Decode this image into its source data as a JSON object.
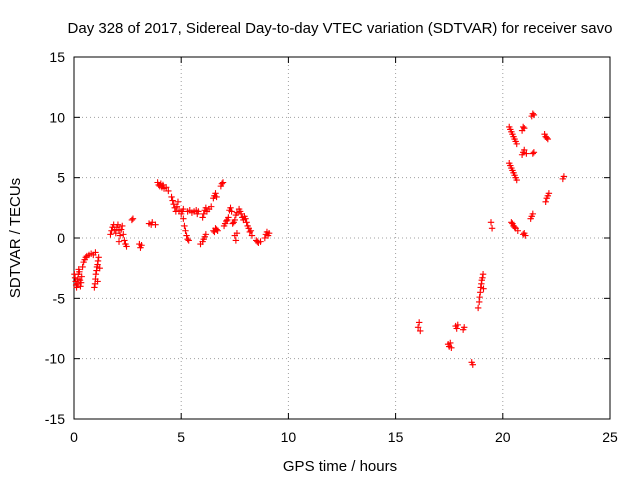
{
  "chart_data": {
    "type": "scatter",
    "title": "Day 328 of 2017, Sidereal Day-to-day VTEC variation (SDTVAR) for receiver savo",
    "xlabel": "GPS time / hours",
    "ylabel": "SDTVAR / TECUs",
    "xlim": [
      0,
      25
    ],
    "ylim": [
      -15,
      15
    ],
    "xticks": [
      0,
      5,
      10,
      15,
      20,
      25
    ],
    "yticks": [
      -15,
      -10,
      -5,
      0,
      5,
      10,
      15
    ],
    "grid": true,
    "marker": "plus",
    "marker_color": "#ff0000",
    "series": [
      {
        "name": "SDTVAR",
        "points": [
          [
            0.02,
            -3.0
          ],
          [
            0.05,
            -3.3
          ],
          [
            0.08,
            -3.6
          ],
          [
            0.1,
            -3.9
          ],
          [
            0.12,
            -4.1
          ],
          [
            0.15,
            -3.8
          ],
          [
            0.18,
            -3.4
          ],
          [
            0.2,
            -3.0
          ],
          [
            0.22,
            -2.6
          ],
          [
            0.25,
            -2.8
          ],
          [
            0.28,
            -3.5
          ],
          [
            0.3,
            -4.0
          ],
          [
            0.33,
            -3.7
          ],
          [
            0.36,
            -3.2
          ],
          [
            0.4,
            -2.4
          ],
          [
            0.45,
            -2.0
          ],
          [
            0.5,
            -1.8
          ],
          [
            0.55,
            -1.6
          ],
          [
            0.6,
            -1.5
          ],
          [
            0.7,
            -1.4
          ],
          [
            0.8,
            -1.3
          ],
          [
            0.9,
            -1.4
          ],
          [
            0.95,
            -4.1
          ],
          [
            0.98,
            -3.8
          ],
          [
            1.0,
            -3.4
          ],
          [
            1.02,
            -3.0
          ],
          [
            1.05,
            -2.7
          ],
          [
            1.07,
            -2.4
          ],
          [
            1.1,
            -2.2
          ],
          [
            1.12,
            -1.9
          ],
          [
            1.15,
            -1.6
          ],
          [
            1.0,
            -1.2
          ],
          [
            1.2,
            -2.5
          ],
          [
            1.1,
            -3.6
          ],
          [
            1.7,
            0.3
          ],
          [
            1.75,
            0.6
          ],
          [
            1.8,
            0.9
          ],
          [
            1.85,
            1.1
          ],
          [
            1.9,
            0.7
          ],
          [
            1.95,
            0.4
          ],
          [
            2.0,
            0.9
          ],
          [
            2.05,
            1.1
          ],
          [
            2.1,
            0.6
          ],
          [
            2.15,
            0.2
          ],
          [
            2.2,
            0.7
          ],
          [
            2.25,
            1.0
          ],
          [
            2.3,
            0.3
          ],
          [
            2.35,
            -0.2
          ],
          [
            2.4,
            -0.5
          ],
          [
            2.45,
            -0.7
          ],
          [
            2.1,
            -0.3
          ],
          [
            2.7,
            1.5
          ],
          [
            2.75,
            1.6
          ],
          [
            3.05,
            -0.5
          ],
          [
            3.1,
            -0.8
          ],
          [
            3.15,
            -0.6
          ],
          [
            3.5,
            1.2
          ],
          [
            3.6,
            1.1
          ],
          [
            3.65,
            1.3
          ],
          [
            3.8,
            1.1
          ],
          [
            3.9,
            4.6
          ],
          [
            3.95,
            4.4
          ],
          [
            4.0,
            4.3
          ],
          [
            4.05,
            4.5
          ],
          [
            4.1,
            4.2
          ],
          [
            4.15,
            4.4
          ],
          [
            4.2,
            4.1
          ],
          [
            4.3,
            4.2
          ],
          [
            4.4,
            3.9
          ],
          [
            4.55,
            3.4
          ],
          [
            4.6,
            3.1
          ],
          [
            4.65,
            2.8
          ],
          [
            4.7,
            2.5
          ],
          [
            4.75,
            2.2
          ],
          [
            4.8,
            2.6
          ],
          [
            4.85,
            3.0
          ],
          [
            4.9,
            2.3
          ],
          [
            5.0,
            2.0
          ],
          [
            5.05,
            2.2
          ],
          [
            5.1,
            1.6
          ],
          [
            5.15,
            1.0
          ],
          [
            5.2,
            0.6
          ],
          [
            5.25,
            0.2
          ],
          [
            5.3,
            -0.1
          ],
          [
            5.35,
            -0.2
          ],
          [
            5.1,
            2.4
          ],
          [
            5.3,
            2.2
          ],
          [
            5.4,
            2.3
          ],
          [
            5.5,
            2.1
          ],
          [
            5.6,
            2.2
          ],
          [
            5.7,
            2.3
          ],
          [
            5.75,
            2.0
          ],
          [
            5.8,
            2.2
          ],
          [
            5.9,
            -0.5
          ],
          [
            6.0,
            -0.3
          ],
          [
            6.05,
            -0.1
          ],
          [
            6.1,
            0.1
          ],
          [
            6.15,
            0.3
          ],
          [
            6.0,
            1.7
          ],
          [
            6.05,
            2.0
          ],
          [
            6.1,
            2.3
          ],
          [
            6.15,
            2.5
          ],
          [
            6.2,
            2.2
          ],
          [
            6.3,
            2.4
          ],
          [
            6.4,
            2.6
          ],
          [
            6.5,
            0.6
          ],
          [
            6.55,
            0.5
          ],
          [
            6.6,
            0.8
          ],
          [
            6.65,
            0.7
          ],
          [
            6.7,
            0.6
          ],
          [
            6.5,
            3.3
          ],
          [
            6.55,
            3.5
          ],
          [
            6.6,
            3.7
          ],
          [
            6.65,
            3.4
          ],
          [
            6.85,
            4.3
          ],
          [
            6.9,
            4.5
          ],
          [
            6.95,
            4.6
          ],
          [
            7.0,
            1.0
          ],
          [
            7.05,
            1.2
          ],
          [
            7.1,
            1.4
          ],
          [
            7.15,
            1.5
          ],
          [
            7.2,
            1.7
          ],
          [
            7.25,
            2.3
          ],
          [
            7.3,
            2.5
          ],
          [
            7.35,
            2.2
          ],
          [
            7.4,
            1.2
          ],
          [
            7.45,
            1.3
          ],
          [
            7.5,
            1.5
          ],
          [
            7.55,
            1.9
          ],
          [
            7.6,
            2.1
          ],
          [
            7.5,
            0.2
          ],
          [
            7.55,
            -0.2
          ],
          [
            7.6,
            0.4
          ],
          [
            7.7,
            2.4
          ],
          [
            7.75,
            2.2
          ],
          [
            7.8,
            2.0
          ],
          [
            7.85,
            1.7
          ],
          [
            7.9,
            1.5
          ],
          [
            7.95,
            1.8
          ],
          [
            8.0,
            1.6
          ],
          [
            8.05,
            1.3
          ],
          [
            8.1,
            1.0
          ],
          [
            8.15,
            0.8
          ],
          [
            8.2,
            0.5
          ],
          [
            8.25,
            0.6
          ],
          [
            8.3,
            0.2
          ],
          [
            8.5,
            -0.2
          ],
          [
            8.55,
            -0.3
          ],
          [
            8.6,
            -0.4
          ],
          [
            8.7,
            -0.3
          ],
          [
            8.9,
            0.0
          ],
          [
            8.95,
            0.3
          ],
          [
            9.0,
            0.5
          ],
          [
            9.05,
            0.2
          ],
          [
            9.1,
            0.4
          ],
          [
            16.05,
            -7.4
          ],
          [
            16.1,
            -7.0
          ],
          [
            16.15,
            -7.7
          ],
          [
            17.45,
            -8.8
          ],
          [
            17.5,
            -9.0
          ],
          [
            17.55,
            -8.7
          ],
          [
            17.6,
            -9.1
          ],
          [
            17.8,
            -7.3
          ],
          [
            17.85,
            -7.5
          ],
          [
            17.9,
            -7.2
          ],
          [
            18.15,
            -7.6
          ],
          [
            18.2,
            -7.4
          ],
          [
            18.55,
            -10.3
          ],
          [
            18.6,
            -10.5
          ],
          [
            18.85,
            -5.8
          ],
          [
            18.9,
            -5.3
          ],
          [
            18.92,
            -4.9
          ],
          [
            18.95,
            -4.5
          ],
          [
            18.97,
            -4.1
          ],
          [
            19.0,
            -3.8
          ],
          [
            19.02,
            -3.5
          ],
          [
            19.05,
            -3.3
          ],
          [
            19.08,
            -3.0
          ],
          [
            19.1,
            -4.2
          ],
          [
            19.45,
            1.3
          ],
          [
            19.5,
            0.8
          ],
          [
            20.3,
            9.2
          ],
          [
            20.35,
            9.0
          ],
          [
            20.4,
            8.8
          ],
          [
            20.45,
            8.6
          ],
          [
            20.5,
            8.4
          ],
          [
            20.55,
            8.2
          ],
          [
            20.6,
            8.0
          ],
          [
            20.65,
            7.8
          ],
          [
            20.3,
            6.2
          ],
          [
            20.35,
            6.0
          ],
          [
            20.4,
            5.8
          ],
          [
            20.45,
            5.6
          ],
          [
            20.5,
            5.4
          ],
          [
            20.55,
            5.2
          ],
          [
            20.6,
            5.0
          ],
          [
            20.65,
            4.8
          ],
          [
            20.4,
            1.3
          ],
          [
            20.45,
            1.2
          ],
          [
            20.5,
            1.0
          ],
          [
            20.55,
            0.9
          ],
          [
            20.6,
            0.8
          ],
          [
            20.7,
            0.6
          ],
          [
            20.9,
            8.9
          ],
          [
            20.95,
            9.2
          ],
          [
            21.0,
            9.1
          ],
          [
            20.9,
            6.9
          ],
          [
            20.95,
            7.1
          ],
          [
            21.0,
            7.3
          ],
          [
            21.1,
            7.0
          ],
          [
            20.95,
            0.3
          ],
          [
            21.0,
            0.4
          ],
          [
            21.05,
            0.2
          ],
          [
            21.35,
            10.1
          ],
          [
            21.4,
            10.3
          ],
          [
            21.45,
            10.2
          ],
          [
            21.4,
            7.0
          ],
          [
            21.45,
            7.1
          ],
          [
            21.3,
            1.6
          ],
          [
            21.35,
            1.8
          ],
          [
            21.4,
            2.0
          ],
          [
            21.95,
            8.6
          ],
          [
            22.0,
            8.4
          ],
          [
            22.05,
            8.3
          ],
          [
            22.1,
            8.2
          ],
          [
            22.0,
            3.0
          ],
          [
            22.05,
            3.3
          ],
          [
            22.1,
            3.5
          ],
          [
            22.15,
            3.7
          ],
          [
            22.8,
            4.9
          ],
          [
            22.85,
            5.1
          ]
        ]
      }
    ]
  }
}
